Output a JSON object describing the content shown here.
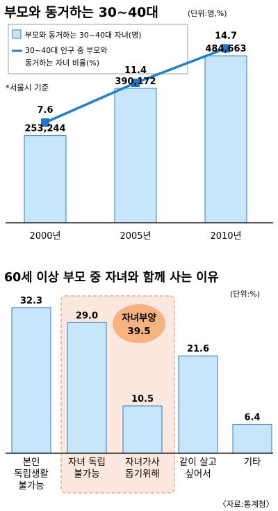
{
  "colors": {
    "bar_fill": "#c8e6fa",
    "bar_stroke": "#2a7fc0",
    "line": "#1f7fd0",
    "marker": "#1e78c8",
    "highlight_fill": "#fde8df",
    "highlight_stroke": "#f19a6e",
    "badge": "#f6b37f",
    "axis": "#222222"
  },
  "chart_data": [
    {
      "type": "bar",
      "title": "부모와 동거하는 30~40대",
      "unit": "(단위:명,%)",
      "note": "*서울시 기준",
      "categories": [
        "2000년",
        "2005년",
        "2010년"
      ],
      "series": [
        {
          "name": "부모와 동거하는 30~40대 자녀(명)",
          "type": "bar",
          "values": [
            253244,
            390172,
            484663
          ],
          "labels": [
            "253,244",
            "390,172",
            "484,663"
          ]
        },
        {
          "name": "30~40대 인구 중 부모와 동거하는 자녀 비율(%)",
          "name_lines": [
            "30~40대 인구 중 부모와",
            "동거하는 자녀 비율(%)"
          ],
          "type": "line",
          "values": [
            7.6,
            11.4,
            14.7
          ],
          "labels": [
            "7.6",
            "11.4",
            "14.7"
          ]
        }
      ],
      "bar_ylim": [
        0,
        600000
      ],
      "line_ylim": [
        0,
        18
      ],
      "grid": false,
      "legend_position": "top-left"
    },
    {
      "type": "bar",
      "title": "60세 이상 부모 중 자녀와 함께 사는 이유",
      "unit": "(단위:%)",
      "categories": [
        "본인 독립생활 불가능",
        "자녀 독립 불가능",
        "자녀가사 돕기위해",
        "같이 살고 싶어서",
        "기타"
      ],
      "category_lines": [
        [
          "본인",
          "독립생활",
          "불가능"
        ],
        [
          "자녀 독립",
          "불가능"
        ],
        [
          "자녀가사",
          "돕기위해"
        ],
        [
          "같이 살고",
          "싶어서"
        ],
        [
          "기타"
        ]
      ],
      "values": [
        32.3,
        29.0,
        10.5,
        21.6,
        6.4
      ],
      "labels": [
        "32.3",
        "29.0",
        "10.5",
        "21.6",
        "6.4"
      ],
      "ylim": [
        0,
        36
      ],
      "grid": false,
      "group": {
        "name": "자녀부양",
        "value": 39.5,
        "value_label": "39.5",
        "members": [
          1,
          2
        ]
      },
      "source": "〈자료:통계청〉"
    }
  ]
}
